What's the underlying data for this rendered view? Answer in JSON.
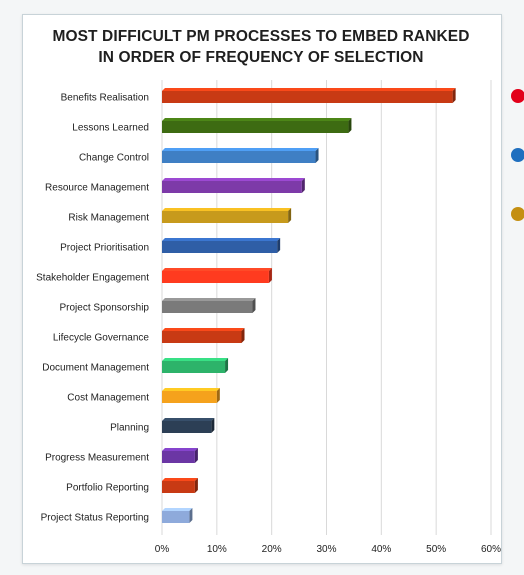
{
  "chart_data": {
    "type": "bar",
    "orientation": "horizontal",
    "title": "MOST DIFFICULT PM PROCESSES TO EMBED RANKED IN ORDER OF FREQUENCY OF SELECTION",
    "title_lines": [
      "MOST DIFFICULT PM PROCESSES TO EMBED RANKED",
      "IN ORDER OF FREQUENCY OF SELECTION"
    ],
    "xlabel": "",
    "ylabel": "",
    "xlim": [
      0,
      60
    ],
    "x_ticks": [
      "0%",
      "10%",
      "20%",
      "30%",
      "40%",
      "50%",
      "60%"
    ],
    "x_tick_values": [
      0,
      10,
      20,
      30,
      40,
      50,
      60
    ],
    "grid": true,
    "legend": "none",
    "categories": [
      "Benefits Realisation",
      "Lessons Learned",
      "Change Control",
      "Resource Management",
      "Risk Management",
      "Project Prioritisation",
      "Stakeholder Engagement",
      "Project Sponsorship",
      "Lifecycle Governance",
      "Document Management",
      "Cost Management",
      "Planning",
      "Progress Measurement",
      "Portfolio Reporting",
      "Project Status Reporting"
    ],
    "values": [
      53,
      34,
      28,
      25.5,
      23,
      21,
      19.5,
      16.5,
      14.5,
      11.5,
      10,
      9,
      6,
      6,
      5
    ],
    "bar_colors": [
      "#c83a14",
      "#3d6b12",
      "#3f7fc4",
      "#7d3aa8",
      "#c79a1c",
      "#2f5ea6",
      "#ff3b1f",
      "#7a7a7a",
      "#c83a14",
      "#2db36a",
      "#f5a21c",
      "#2c3f55",
      "#6b36a4",
      "#c83a14",
      "#8eaadb"
    ]
  },
  "side_dots": [
    "#e2001a",
    "#1f6fbf",
    "#c48f12"
  ]
}
